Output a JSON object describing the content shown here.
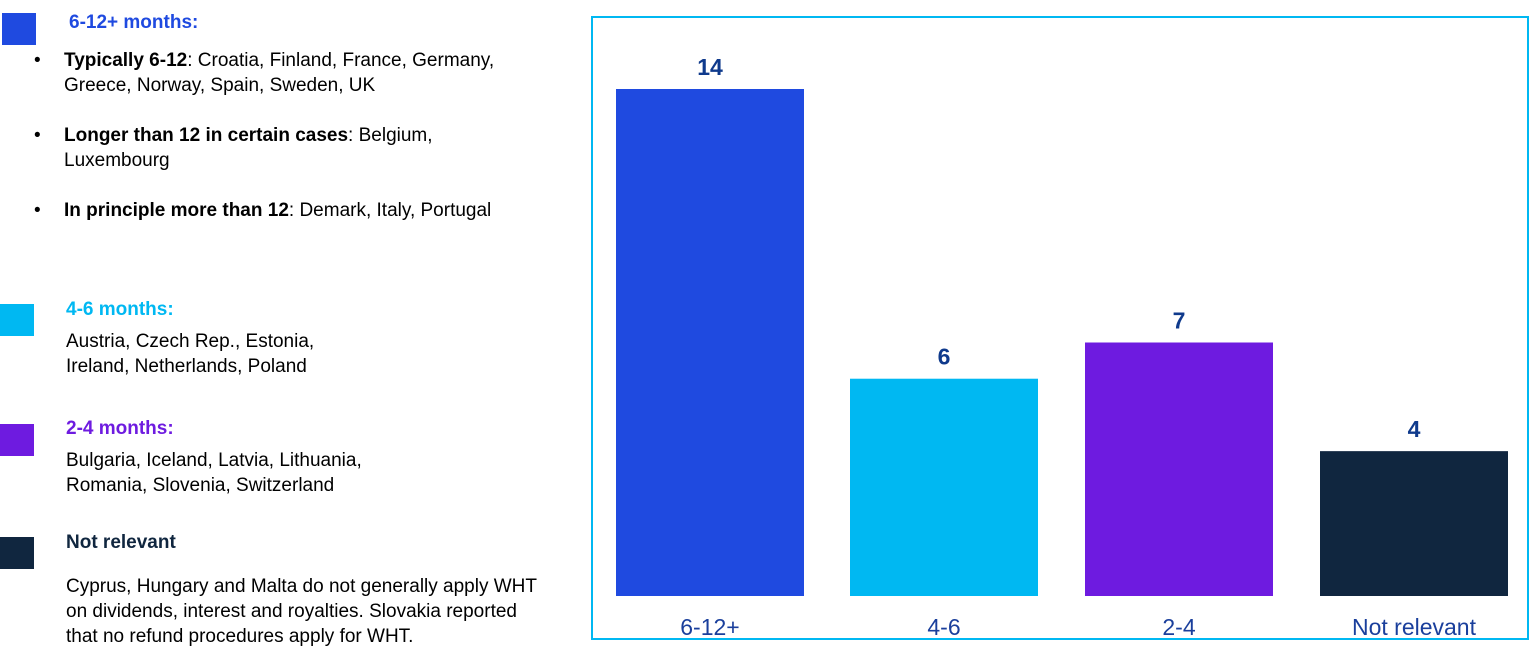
{
  "legend": {
    "groups": [
      {
        "key": "6-12",
        "color": "#1f4ae0",
        "title": "6-12+ months:",
        "bullets": [
          {
            "bold": "Typically 6-12",
            "rest": ": Croatia, Finland, France, Germany, Greece, Norway, Spain, Sweden, UK"
          },
          {
            "bold": "Longer than 12 in certain cases",
            "rest": ": Belgium, Luxembourg"
          },
          {
            "bold": "In principle more than 12",
            "rest": ": Demark, Italy, Portugal"
          }
        ]
      },
      {
        "key": "4-6",
        "color": "#00b8f2",
        "title": "4-6 months:",
        "text": "Austria, Czech Rep., Estonia, Ireland, Netherlands, Poland"
      },
      {
        "key": "2-4",
        "color": "#6e1be0",
        "title": "2-4 months:",
        "text": "Bulgaria, Iceland, Latvia, Lithuania, Romania, Slovenia, Switzerland"
      },
      {
        "key": "nr",
        "color": "#10263f",
        "title": "Not relevant",
        "title_color": "#10263f",
        "text": "Cyprus, Hungary and Malta do not generally apply WHT on dividends, interest and royalties. Slovakia reported that no refund procedures apply for WHT."
      }
    ]
  },
  "chart_data": {
    "type": "bar",
    "categories": [
      "6-12+",
      "4-6",
      "2-4",
      "Not relevant"
    ],
    "values": [
      14,
      6,
      7,
      4
    ],
    "colors": [
      "#1f4ae0",
      "#00b8f2",
      "#6e1be0",
      "#10263f"
    ],
    "title": "",
    "xlabel": "",
    "ylabel": "",
    "ylim": [
      0,
      14
    ],
    "grid": false,
    "data_label_color": "#0f3a8c",
    "category_label_color": "#1a3f9c",
    "border_color": "#00b8f2"
  }
}
